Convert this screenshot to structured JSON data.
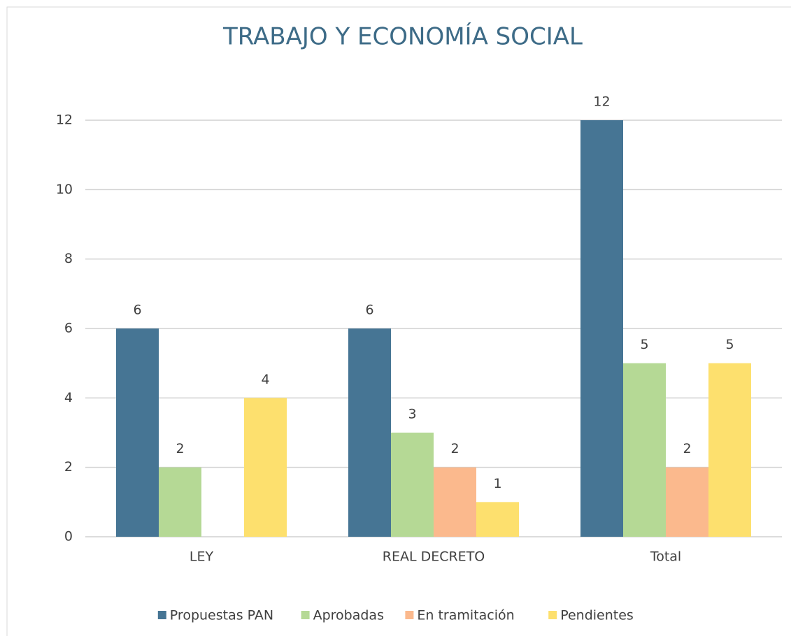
{
  "chart_data": {
    "type": "bar",
    "title": "TRABAJO Y ECONOMÍA SOCIAL",
    "categories": [
      "LEY",
      "REAL DECRETO",
      "Total"
    ],
    "series": [
      {
        "name": "Propuestas PAN",
        "color": "#467594",
        "values": [
          6,
          6,
          12
        ]
      },
      {
        "name": "Aprobadas",
        "color": "#b5d995",
        "values": [
          2,
          3,
          5
        ]
      },
      {
        "name": "En tramitación",
        "color": "#fbb98d",
        "values": [
          null,
          2,
          2
        ]
      },
      {
        "name": "Pendientes",
        "color": "#fde06e",
        "values": [
          4,
          1,
          5
        ]
      }
    ],
    "ylim": [
      0,
      12
    ],
    "yticks": [
      0,
      2,
      4,
      6,
      8,
      10,
      12
    ],
    "grid": true,
    "legend": "bottom"
  }
}
